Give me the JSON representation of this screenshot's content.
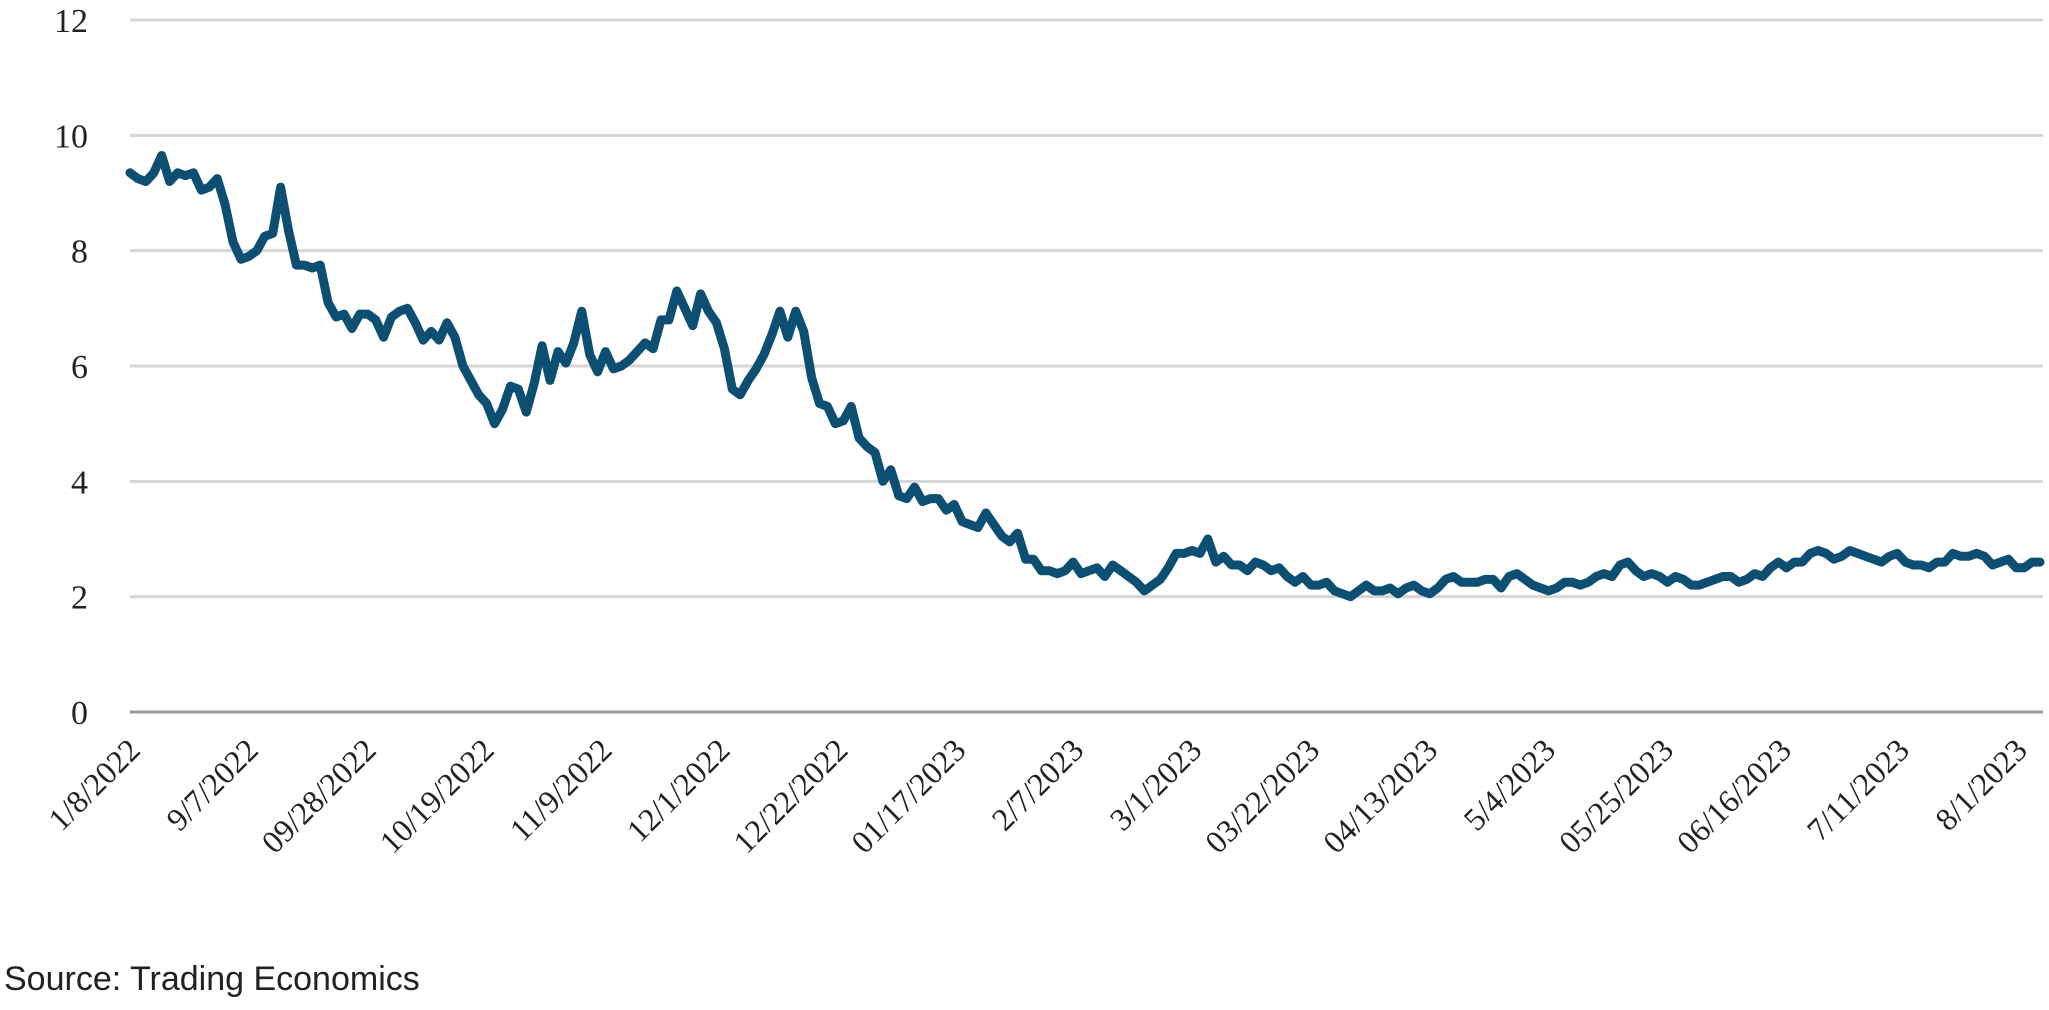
{
  "source_note": "Source: Trading Economics",
  "chart_data": {
    "type": "line",
    "title": "",
    "xlabel": "",
    "ylabel": "",
    "ylim": [
      0,
      12
    ],
    "yticks": [
      0,
      2,
      4,
      6,
      8,
      10,
      12
    ],
    "grid": true,
    "legend": "none",
    "line_color": "#0d4f73",
    "x_tick_labels": [
      "1/8/2022",
      "9/7/2022",
      "09/28/2022",
      "10/19/2022",
      "11/9/2022",
      "12/1/2022",
      "12/22/2022",
      "01/17/2023",
      "2/7/2023",
      "3/1/2023",
      "03/22/2023",
      "04/13/2023",
      "5/4/2023",
      "05/25/2023",
      "06/16/2023",
      "7/11/2023",
      "8/1/2023"
    ],
    "series": [
      {
        "name": "",
        "values": [
          9.35,
          9.25,
          9.2,
          9.35,
          9.65,
          9.2,
          9.35,
          9.3,
          9.35,
          9.05,
          9.1,
          9.25,
          8.8,
          8.15,
          7.85,
          7.9,
          8.0,
          8.25,
          8.3,
          9.1,
          8.35,
          7.75,
          7.75,
          7.7,
          7.75,
          7.1,
          6.85,
          6.9,
          6.65,
          6.9,
          6.9,
          6.8,
          6.5,
          6.85,
          6.95,
          7.0,
          6.75,
          6.45,
          6.6,
          6.45,
          6.75,
          6.5,
          6.0,
          5.75,
          5.5,
          5.35,
          5.0,
          5.25,
          5.65,
          5.6,
          5.2,
          5.7,
          6.35,
          5.75,
          6.25,
          6.05,
          6.4,
          6.95,
          6.2,
          5.9,
          6.25,
          5.95,
          6.0,
          6.1,
          6.25,
          6.4,
          6.3,
          6.8,
          6.8,
          7.3,
          7.0,
          6.7,
          7.25,
          6.95,
          6.75,
          6.3,
          5.6,
          5.5,
          5.75,
          5.95,
          6.2,
          6.55,
          6.95,
          6.5,
          6.95,
          6.6,
          5.8,
          5.35,
          5.3,
          5.0,
          5.05,
          5.3,
          4.75,
          4.6,
          4.5,
          4.0,
          4.2,
          3.75,
          3.7,
          3.9,
          3.65,
          3.7,
          3.7,
          3.5,
          3.6,
          3.3,
          3.25,
          3.2,
          3.45,
          3.25,
          3.05,
          2.95,
          3.1,
          2.65,
          2.65,
          2.45,
          2.45,
          2.4,
          2.45,
          2.6,
          2.4,
          2.45,
          2.5,
          2.35,
          2.55,
          2.45,
          2.35,
          2.25,
          2.1,
          2.2,
          2.3,
          2.5,
          2.75,
          2.75,
          2.8,
          2.75,
          3.0,
          2.6,
          2.7,
          2.55,
          2.55,
          2.45,
          2.6,
          2.55,
          2.45,
          2.5,
          2.35,
          2.25,
          2.35,
          2.2,
          2.2,
          2.25,
          2.1,
          2.05,
          2.0,
          2.1,
          2.2,
          2.1,
          2.1,
          2.15,
          2.05,
          2.15,
          2.2,
          2.1,
          2.05,
          2.15,
          2.3,
          2.35,
          2.25,
          2.25,
          2.25,
          2.3,
          2.3,
          2.15,
          2.35,
          2.4,
          2.3,
          2.2,
          2.15,
          2.1,
          2.15,
          2.25,
          2.25,
          2.2,
          2.25,
          2.35,
          2.4,
          2.35,
          2.55,
          2.6,
          2.45,
          2.35,
          2.4,
          2.35,
          2.25,
          2.35,
          2.3,
          2.2,
          2.2,
          2.25,
          2.3,
          2.35,
          2.35,
          2.25,
          2.3,
          2.4,
          2.35,
          2.5,
          2.6,
          2.5,
          2.6,
          2.6,
          2.75,
          2.8,
          2.75,
          2.65,
          2.7,
          2.8,
          2.75,
          2.7,
          2.65,
          2.6,
          2.7,
          2.75,
          2.6,
          2.55,
          2.55,
          2.5,
          2.6,
          2.6,
          2.75,
          2.7,
          2.7,
          2.75,
          2.7,
          2.55,
          2.6,
          2.65,
          2.5,
          2.5,
          2.6,
          2.6
        ]
      }
    ]
  }
}
